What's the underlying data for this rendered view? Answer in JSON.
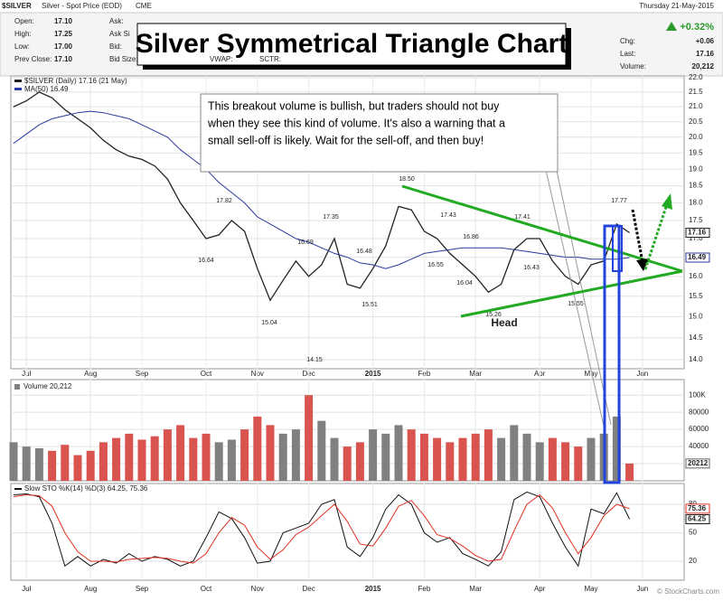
{
  "header": {
    "symbol": "$SILVER",
    "description": "Silver - Spot Price (EOD)",
    "exchange": "CME",
    "left_fields": [
      [
        "Open:",
        "17.10"
      ],
      [
        "High:",
        "17.25"
      ],
      [
        "Low:",
        "17.00"
      ],
      [
        "Prev Close:",
        "17.10"
      ]
    ],
    "mid_fields": [
      "Ask:",
      "Ask Si",
      "Bid:",
      "Bid Size:"
    ],
    "extra_fields": [
      "VWAP:",
      "SCTR:"
    ],
    "right": {
      "date": "Thursday 21-May-2015",
      "change_pct": "+0.32%",
      "fields": [
        [
          "Chg:",
          "+0.06"
        ],
        [
          "Last:",
          "17.16"
        ],
        [
          "Volume:",
          "20,212"
        ]
      ]
    },
    "title": "Silver Symmetrical Triangle Chart",
    "callout": [
      "This breakout volume is bullish, but traders should not buy",
      "when they see this kind of volume.  It's also a warning that a",
      "small sell-off is likely.  Wait for the sell-off, and then buy!"
    ],
    "head_label": "Head",
    "watermark": "© StockCharts.com"
  },
  "chart_data": [
    {
      "type": "line",
      "log": true,
      "grid": true,
      "categories": [
        null,
        "Jul",
        null,
        null,
        null,
        null,
        "Aug",
        null,
        null,
        null,
        "Sep",
        null,
        null,
        null,
        null,
        "Oct",
        null,
        null,
        null,
        "Nov",
        null,
        null,
        null,
        "Dec",
        null,
        null,
        null,
        null,
        "2015",
        null,
        null,
        null,
        "Feb",
        null,
        null,
        null,
        "Mar",
        null,
        null,
        null,
        null,
        "Apr",
        null,
        null,
        null,
        "May",
        null,
        null,
        null,
        "Jun",
        null,
        null,
        null
      ],
      "series": [
        {
          "name": "$SILVER (Daily) 17.16 (21 May)",
          "color": "#222222",
          "values": [
            21.0,
            21.2,
            21.5,
            21.3,
            20.9,
            20.6,
            20.3,
            19.9,
            19.6,
            19.4,
            19.3,
            19.1,
            18.7,
            18.0,
            17.5,
            17.0,
            17.1,
            17.5,
            17.2,
            16.2,
            15.4,
            15.9,
            16.4,
            16.0,
            16.3,
            17.0,
            15.8,
            15.7,
            16.2,
            16.8,
            17.9,
            17.8,
            17.2,
            17.0,
            16.6,
            16.3,
            16.0,
            15.6,
            15.8,
            16.7,
            17.0,
            17.0,
            16.4,
            16.0,
            15.8,
            16.3,
            16.4,
            17.4,
            17.16,
            null,
            null,
            null,
            null
          ]
        },
        {
          "name": "MA(50) 16.49",
          "color": "#2b3a9e",
          "values": [
            19.8,
            20.1,
            20.4,
            20.6,
            20.7,
            20.8,
            20.85,
            20.8,
            20.7,
            20.6,
            20.4,
            20.2,
            20.0,
            19.6,
            19.3,
            19.0,
            18.6,
            18.3,
            18.0,
            17.6,
            17.4,
            17.2,
            17.0,
            16.9,
            16.75,
            16.6,
            16.5,
            16.35,
            16.3,
            16.2,
            16.3,
            16.45,
            16.6,
            16.65,
            16.7,
            16.75,
            16.75,
            16.75,
            16.75,
            16.7,
            16.65,
            16.6,
            16.55,
            16.5,
            16.5,
            16.45,
            16.45,
            16.45,
            16.49,
            null,
            null,
            null,
            null
          ]
        }
      ],
      "ylim": [
        14,
        22
      ],
      "yticks": [
        {
          "value": 14,
          "label": "14.0"
        },
        14.5,
        {
          "value": 15,
          "label": "15.0"
        },
        15.5,
        {
          "value": 16,
          "label": "16.0"
        },
        16.5,
        {
          "value": 17,
          "label": "17.0"
        },
        17.5,
        {
          "value": 18,
          "label": "18.0"
        },
        18.5,
        {
          "value": 19,
          "label": "19.0"
        },
        19.5,
        {
          "value": 20,
          "label": "20.0"
        },
        20.5,
        {
          "value": 21,
          "label": "21.0"
        },
        21.5,
        {
          "value": 22,
          "label": "22.0"
        }
      ],
      "tags": [
        17.16,
        16.49
      ],
      "annotations": [
        "17.82",
        "16.64",
        "15.04",
        "16.69",
        "14.15",
        "17.35",
        "16.48",
        "15.51",
        "18.50",
        "17.43",
        "16.55",
        "16.86",
        "16.04",
        "15.26",
        "17.41",
        "16.43",
        "15.55",
        "17.77"
      ]
    },
    {
      "type": "bar",
      "title": "Volume 20,212",
      "up_color": "#808080",
      "down_color": "#d9534f",
      "grid": true,
      "values": [
        45000,
        40000,
        38000,
        35000,
        42000,
        30000,
        35000,
        45000,
        50000,
        55000,
        48000,
        52000,
        60000,
        65000,
        50000,
        55000,
        45000,
        48000,
        60000,
        75000,
        65000,
        55000,
        60000,
        100000,
        70000,
        50000,
        40000,
        45000,
        60000,
        55000,
        65000,
        60000,
        55000,
        50000,
        45000,
        50000,
        55000,
        60000,
        50000,
        65000,
        55000,
        45000,
        50000,
        45000,
        40000,
        50000,
        55000,
        75000,
        20212,
        null,
        null,
        null,
        null
      ],
      "ylim": [
        0,
        115000
      ],
      "yticks": [
        20000,
        40000,
        60000,
        80000,
        {
          "value": 100000,
          "label": "100K"
        }
      ],
      "tags": [
        20212
      ]
    },
    {
      "type": "line",
      "title": "Slow STO %K(14) %D(3) 64.25, 75.36",
      "grid": true,
      "categories": [
        null,
        "Jul",
        null,
        null,
        null,
        null,
        "Aug",
        null,
        null,
        null,
        "Sep",
        null,
        null,
        null,
        null,
        "Oct",
        null,
        null,
        null,
        "Nov",
        null,
        null,
        null,
        "Dec",
        null,
        null,
        null,
        null,
        "2015",
        null,
        null,
        null,
        "Feb",
        null,
        null,
        null,
        "Mar",
        null,
        null,
        null,
        null,
        "Apr",
        null,
        null,
        null,
        "May",
        null,
        null,
        null,
        "Jun",
        null,
        null,
        null
      ],
      "series": [
        {
          "color": "#111111",
          "values": [
            90,
            91,
            88,
            60,
            15,
            25,
            15,
            22,
            18,
            28,
            20,
            25,
            22,
            15,
            20,
            45,
            72,
            65,
            45,
            18,
            20,
            50,
            55,
            60,
            80,
            85,
            35,
            25,
            45,
            75,
            90,
            80,
            50,
            40,
            45,
            28,
            22,
            15,
            30,
            85,
            93,
            88,
            60,
            35,
            15,
            75,
            70,
            92,
            64.25,
            null,
            null,
            null,
            null
          ]
        },
        {
          "color": "#e03020",
          "values": [
            88,
            90,
            89,
            78,
            50,
            30,
            20,
            20,
            19,
            22,
            23,
            24,
            23,
            20,
            18,
            28,
            50,
            66,
            58,
            35,
            22,
            32,
            48,
            56,
            68,
            80,
            62,
            38,
            36,
            55,
            78,
            84,
            68,
            48,
            44,
            36,
            26,
            20,
            22,
            52,
            80,
            90,
            76,
            50,
            28,
            45,
            68,
            80,
            75.36,
            null,
            null,
            null,
            null
          ]
        }
      ],
      "ylim": [
        0,
        100
      ],
      "yticks": [
        20,
        50,
        80
      ],
      "tags": [
        75.36,
        64.25
      ]
    }
  ]
}
